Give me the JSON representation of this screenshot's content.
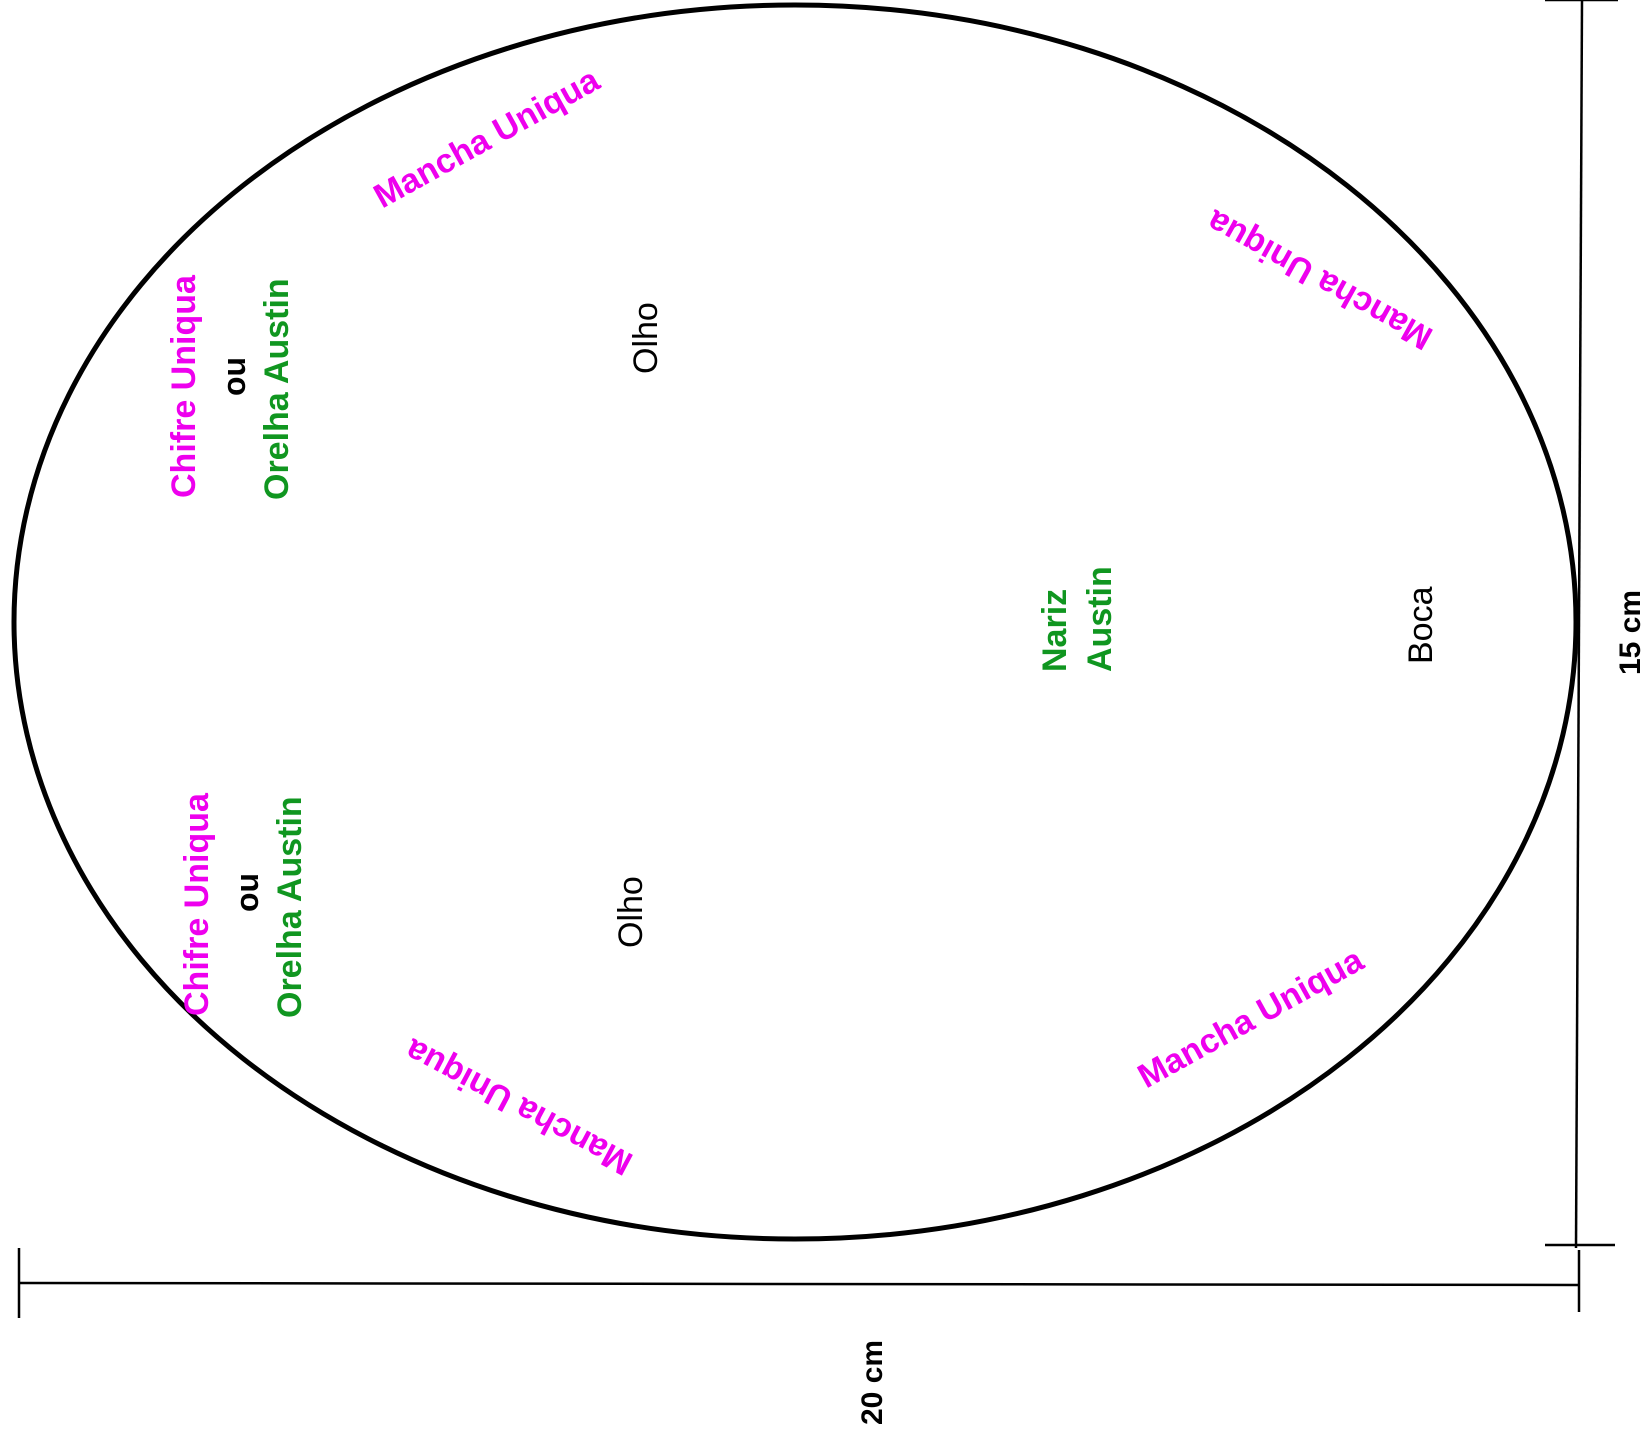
{
  "colors": {
    "outline": "#000000",
    "accent_magenta": "#ee00ee",
    "accent_green": "#109620"
  },
  "diagram": {
    "labels": {
      "chifre_top": "Chifre Uniqua",
      "ou_top": "ou",
      "orelha_top": "Orelha Austin",
      "chifre_bottom": "Chifre Uniqua",
      "ou_bottom": "ou",
      "orelha_bottom": "Orelha Austin",
      "mancha_top_left": "Mancha Uniqua",
      "mancha_top_right": "Mancha Uniqua",
      "mancha_bottom_left": "Mancha Uniqua",
      "mancha_bottom_right": "Mancha Uniqua",
      "olho_top": "Olho",
      "olho_bottom": "Olho",
      "nariz": "Nariz",
      "austin": "Austin",
      "boca": "Boca"
    },
    "dimensions": {
      "width_label": "20 cm",
      "height_label": "15 cm"
    }
  }
}
